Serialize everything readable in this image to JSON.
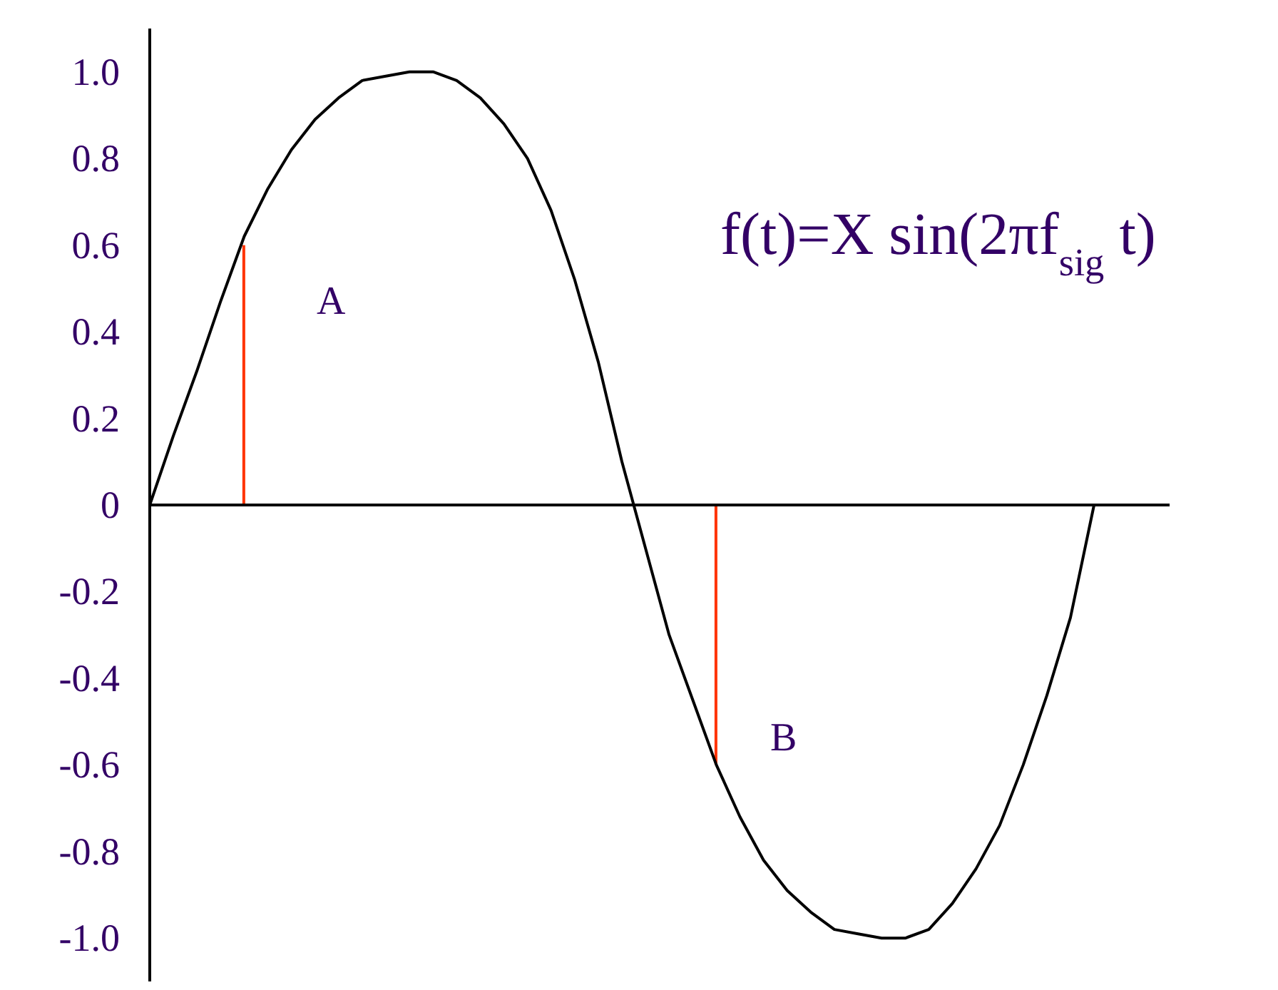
{
  "chart_data": {
    "type": "line",
    "categories": [
      null,
      null,
      null,
      null,
      null,
      null,
      null,
      null,
      null,
      null,
      null,
      null,
      null,
      null,
      null,
      null,
      null,
      null,
      null,
      null,
      null,
      null,
      null,
      null,
      null,
      null,
      null,
      null,
      null,
      null,
      null,
      null,
      null,
      null,
      null,
      null,
      null,
      null,
      null,
      null,
      null
    ],
    "ylim": [
      -1.1,
      1.1
    ],
    "yticks": [
      {
        "value": 1,
        "label": "1.0"
      },
      0.8,
      0.6,
      0.4,
      0.2,
      0,
      -0.2,
      -0.4,
      -0.6,
      -0.8,
      {
        "value": -1,
        "label": "-1.0"
      }
    ],
    "tick_labels": "y",
    "legend": false,
    "marker": "none",
    "ref_lines": [
      {
        "axis": "y",
        "value": 0,
        "color": "#000000"
      }
    ],
    "series": [
      {
        "color": "#000000",
        "values": [
          0,
          0.16,
          0.31,
          0.47,
          0.62,
          0.73,
          0.82,
          0.89,
          0.94,
          0.98,
          0.99,
          1.0,
          1.0,
          0.98,
          0.94,
          0.88,
          0.8,
          0.68,
          0.52,
          0.33,
          0.1,
          -0.1,
          -0.3,
          -0.45,
          -0.6,
          -0.72,
          -0.82,
          -0.89,
          -0.94,
          -0.98,
          -0.99,
          -1.0,
          -1.0,
          -0.98,
          -0.92,
          -0.84,
          -0.74,
          -0.6,
          -0.44,
          -0.26,
          0
        ]
      },
      {
        "type": "bar",
        "color": "#ff3300",
        "values": [
          null,
          null,
          null,
          null,
          0.6,
          null,
          null,
          null,
          null,
          null,
          null,
          null,
          null,
          null,
          null,
          null,
          null,
          null,
          null,
          null,
          null,
          null,
          null,
          null,
          -0.6,
          null,
          null,
          null,
          null,
          null,
          null,
          null,
          null,
          null,
          null,
          null,
          null,
          null,
          null,
          null,
          null
        ]
      }
    ],
    "annotations": [
      "A",
      "B",
      "f(t)=X sin(2πf$_{sig}$ t)"
    ]
  }
}
